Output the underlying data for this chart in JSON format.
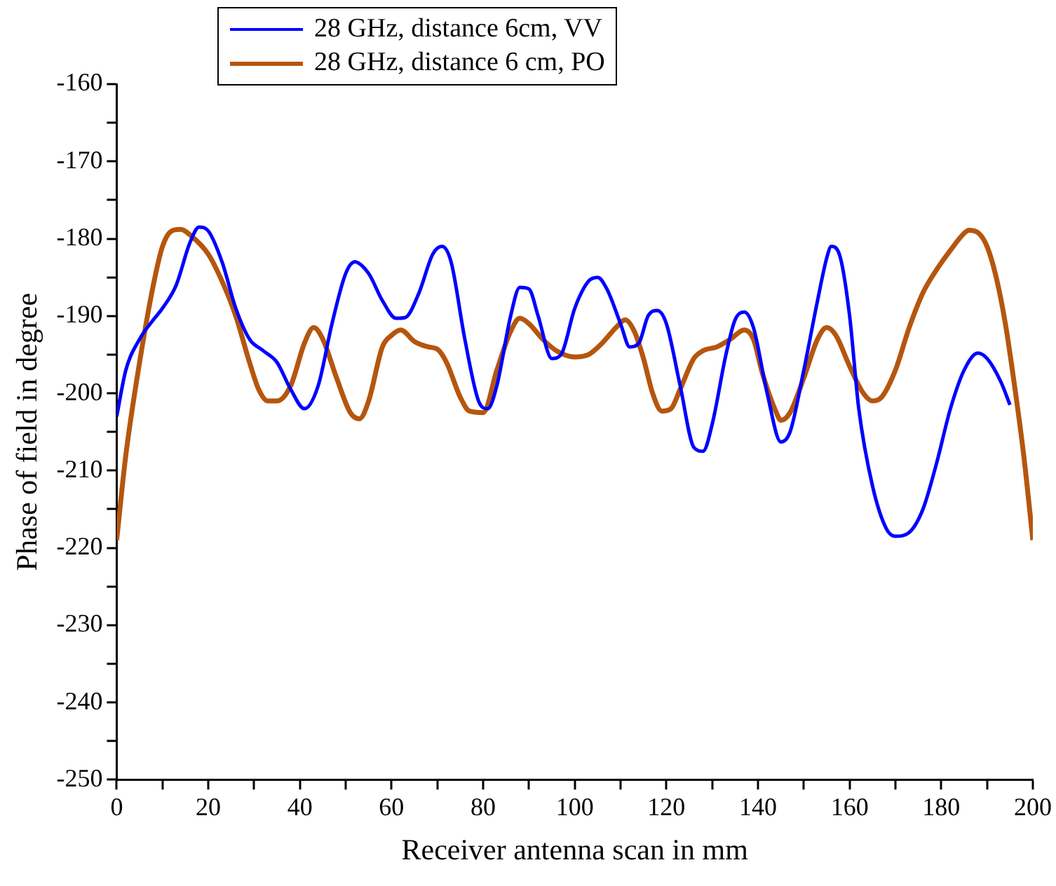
{
  "chart_data": {
    "type": "line",
    "xlabel": "Receiver antenna scan in mm",
    "ylabel": "Phase of field in degree",
    "legend": "top",
    "grid": false,
    "marker": "none",
    "line_style": "solid",
    "xlim": [
      0,
      200
    ],
    "ylim": [
      -250,
      -160
    ],
    "xticks": [
      0,
      {
        "value": 10,
        "label": null
      },
      20,
      {
        "value": 30,
        "label": null
      },
      40,
      {
        "value": 50,
        "label": null
      },
      60,
      {
        "value": 70,
        "label": null
      },
      80,
      {
        "value": 90,
        "label": null
      },
      100,
      {
        "value": 110,
        "label": null
      },
      120,
      {
        "value": 130,
        "label": null
      },
      140,
      {
        "value": 150,
        "label": null
      },
      160,
      {
        "value": 170,
        "label": null
      },
      180,
      {
        "value": 190,
        "label": null
      },
      200
    ],
    "yticks": [
      -250,
      {
        "value": -245,
        "label": null
      },
      -240,
      {
        "value": -235,
        "label": null
      },
      -230,
      {
        "value": -225,
        "label": null
      },
      -220,
      {
        "value": -215,
        "label": null
      },
      -210,
      {
        "value": -205,
        "label": null
      },
      -200,
      {
        "value": -195,
        "label": null
      },
      -190,
      {
        "value": -185,
        "label": null
      },
      -180,
      {
        "value": -175,
        "label": null
      },
      -170,
      {
        "value": -165,
        "label": null
      },
      -160
    ],
    "series": [
      {
        "name": "28 GHz, distance 6cm, VV",
        "color": "#0000ff",
        "x": [
          0,
          2,
          5,
          8,
          10,
          13,
          16,
          18,
          20,
          23,
          26,
          29,
          32,
          35,
          38,
          41,
          44,
          47,
          50,
          52,
          55,
          58,
          61,
          63,
          66,
          69,
          71,
          73,
          76,
          79,
          81,
          83,
          86,
          88,
          90,
          92,
          95,
          97,
          100,
          103,
          105,
          107,
          110,
          112,
          114,
          116,
          118,
          120,
          123,
          126,
          128,
          130,
          133,
          135,
          137,
          139,
          142,
          145,
          147,
          150,
          153,
          155,
          156,
          158,
          160,
          162,
          165,
          168,
          170,
          173,
          176,
          179,
          182,
          185,
          188,
          190,
          193,
          195
        ],
        "values": [
          -203,
          -197,
          -193,
          -190.5,
          -189,
          -186,
          -180.5,
          -178.5,
          -179,
          -183,
          -189,
          -193,
          -194.5,
          -196,
          -199.5,
          -202,
          -199,
          -191,
          -184.5,
          -183,
          -184.5,
          -188,
          -190.3,
          -190.2,
          -187,
          -182,
          -181,
          -183,
          -193,
          -201,
          -202,
          -199,
          -190,
          -186.3,
          -186.5,
          -190,
          -195.5,
          -195,
          -189,
          -185.5,
          -185,
          -186.5,
          -191,
          -194,
          -193.5,
          -190,
          -189.3,
          -191,
          -199,
          -207,
          -207.5,
          -204,
          -195,
          -190.5,
          -189.5,
          -191.5,
          -200,
          -206.3,
          -205,
          -197,
          -188,
          -182.5,
          -181,
          -182.5,
          -190,
          -202,
          -212,
          -217.5,
          -218.5,
          -218,
          -215,
          -209,
          -202,
          -197,
          -194.8,
          -195.5,
          -198.5,
          -201.5
        ]
      },
      {
        "name": "28 GHz, distance 6 cm, PO",
        "color": "#b5560e",
        "x": [
          0,
          2,
          5,
          8,
          10,
          12,
          14,
          16,
          20,
          23,
          26,
          29,
          31,
          33,
          35,
          38,
          41,
          43,
          45,
          48,
          51,
          53,
          55,
          58,
          60,
          62,
          65,
          68,
          70,
          72,
          75,
          77,
          80,
          83,
          86,
          88,
          90,
          93,
          96,
          100,
          103,
          106,
          109,
          111,
          113,
          115,
          117,
          119,
          121,
          123,
          126,
          128,
          131,
          134,
          137,
          139,
          141,
          144,
          145,
          147,
          150,
          153,
          155,
          157,
          160,
          163,
          165,
          167,
          170,
          173,
          176,
          179,
          182,
          185,
          186,
          188,
          190,
          192,
          194,
          196,
          198,
          200
        ],
        "values": [
          -219,
          -208,
          -196,
          -186,
          -181,
          -179,
          -178.8,
          -179.5,
          -182,
          -185.5,
          -190,
          -196,
          -199.5,
          -201,
          -201,
          -199,
          -193.5,
          -191.5,
          -193,
          -198,
          -202.5,
          -203.3,
          -201,
          -194,
          -192.5,
          -191.8,
          -193.3,
          -194,
          -194.3,
          -196,
          -200.5,
          -202.3,
          -202.5,
          -197,
          -192,
          -190.3,
          -191,
          -193,
          -194.5,
          -195.3,
          -195,
          -193.5,
          -191.5,
          -190.5,
          -192,
          -195.5,
          -200,
          -202.3,
          -202,
          -199.5,
          -195.5,
          -194.5,
          -194,
          -193,
          -191.8,
          -193,
          -197.5,
          -202.5,
          -203.5,
          -202.5,
          -198,
          -193,
          -191.5,
          -192.5,
          -196.5,
          -200,
          -201,
          -200.5,
          -197,
          -191.5,
          -187,
          -184,
          -181.5,
          -179.3,
          -178.9,
          -179.2,
          -181,
          -185,
          -191,
          -199,
          -208,
          -219
        ]
      }
    ]
  }
}
